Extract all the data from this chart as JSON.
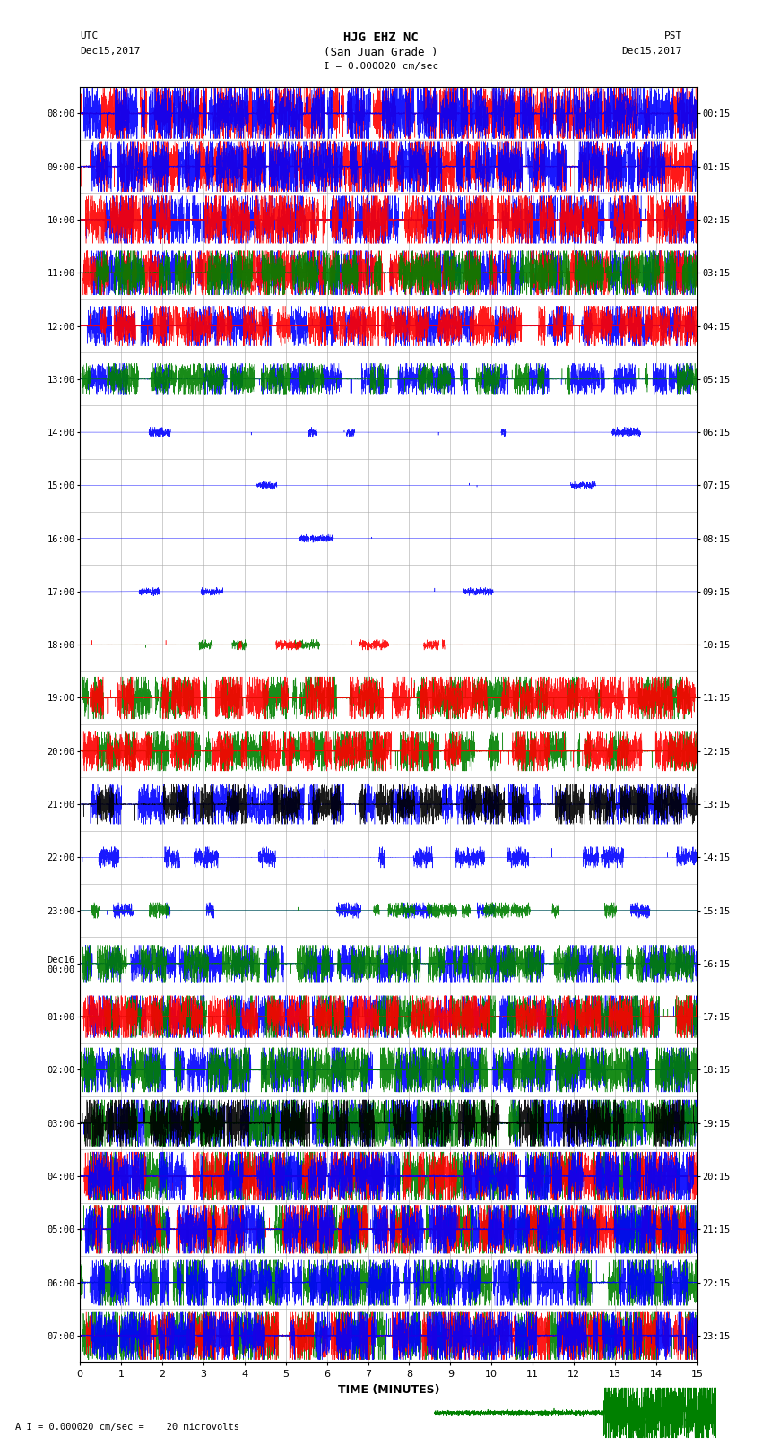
{
  "title_line1": "HJG EHZ NC",
  "title_line2": "(San Juan Grade )",
  "title_scale": "I = 0.000020 cm/sec",
  "left_label_top": "UTC",
  "left_label_date": "Dec15,2017",
  "right_label_top": "PST",
  "right_label_date": "Dec15,2017",
  "bottom_label": "TIME (MINUTES)",
  "bottom_note": "A I = 0.000020 cm/sec =    20 microvolts",
  "utc_times": [
    "08:00",
    "09:00",
    "10:00",
    "11:00",
    "12:00",
    "13:00",
    "14:00",
    "15:00",
    "16:00",
    "17:00",
    "18:00",
    "19:00",
    "20:00",
    "21:00",
    "22:00",
    "23:00",
    "Dec16\n00:00",
    "01:00",
    "02:00",
    "03:00",
    "04:00",
    "05:00",
    "06:00",
    "07:00"
  ],
  "pst_times": [
    "00:15",
    "01:15",
    "02:15",
    "03:15",
    "04:15",
    "05:15",
    "06:15",
    "07:15",
    "08:15",
    "09:15",
    "10:15",
    "11:15",
    "12:15",
    "13:15",
    "14:15",
    "15:15",
    "16:15",
    "17:15",
    "18:15",
    "19:15",
    "20:15",
    "21:15",
    "22:15",
    "23:15"
  ],
  "x_ticks": [
    0,
    1,
    2,
    3,
    4,
    5,
    6,
    7,
    8,
    9,
    10,
    11,
    12,
    13,
    14,
    15
  ],
  "x_lim": [
    0,
    15
  ],
  "num_rows": 24,
  "colors": {
    "red": "#ff0000",
    "blue": "#0000ff",
    "green": "#008000",
    "black": "#000000",
    "background": "#ffffff",
    "grid": "#aaaaaa"
  },
  "fig_width": 8.5,
  "fig_height": 16.13,
  "dpi": 100,
  "row_configs": [
    {
      "amp": 0.48,
      "colors": [
        "red",
        "blue"
      ],
      "noise": 0.35,
      "spikes": 0.9,
      "burst_density": 0.85
    },
    {
      "amp": 0.48,
      "colors": [
        "red",
        "blue"
      ],
      "noise": 0.3,
      "spikes": 0.9,
      "burst_density": 0.8
    },
    {
      "amp": 0.45,
      "colors": [
        "blue",
        "red"
      ],
      "noise": 0.28,
      "spikes": 0.85,
      "burst_density": 0.75
    },
    {
      "amp": 0.42,
      "colors": [
        "blue",
        "red",
        "green"
      ],
      "noise": 0.25,
      "spikes": 0.8,
      "burst_density": 0.7
    },
    {
      "amp": 0.38,
      "colors": [
        "blue",
        "red"
      ],
      "noise": 0.2,
      "spikes": 0.7,
      "burst_density": 0.55
    },
    {
      "amp": 0.3,
      "colors": [
        "blue",
        "green"
      ],
      "noise": 0.15,
      "spikes": 0.5,
      "burst_density": 0.4
    },
    {
      "amp": 0.1,
      "colors": [
        "blue"
      ],
      "noise": 0.03,
      "spikes": 0.05,
      "burst_density": 0.05
    },
    {
      "amp": 0.08,
      "colors": [
        "blue"
      ],
      "noise": 0.02,
      "spikes": 0.03,
      "burst_density": 0.03
    },
    {
      "amp": 0.08,
      "colors": [
        "blue"
      ],
      "noise": 0.02,
      "spikes": 0.03,
      "burst_density": 0.03
    },
    {
      "amp": 0.08,
      "colors": [
        "blue"
      ],
      "noise": 0.02,
      "spikes": 0.03,
      "burst_density": 0.03
    },
    {
      "amp": 0.1,
      "colors": [
        "green",
        "red"
      ],
      "noise": 0.04,
      "spikes": 0.06,
      "burst_density": 0.05
    },
    {
      "amp": 0.4,
      "colors": [
        "green",
        "red"
      ],
      "noise": 0.22,
      "spikes": 0.7,
      "burst_density": 0.6
    },
    {
      "amp": 0.38,
      "colors": [
        "green",
        "red"
      ],
      "noise": 0.2,
      "spikes": 0.65,
      "burst_density": 0.55
    },
    {
      "amp": 0.38,
      "colors": [
        "blue",
        "black"
      ],
      "noise": 0.18,
      "spikes": 0.65,
      "burst_density": 0.5
    },
    {
      "amp": 0.2,
      "colors": [
        "blue"
      ],
      "noise": 0.08,
      "spikes": 0.15,
      "burst_density": 0.15
    },
    {
      "amp": 0.15,
      "colors": [
        "blue",
        "green"
      ],
      "noise": 0.06,
      "spikes": 0.1,
      "burst_density": 0.1
    },
    {
      "amp": 0.35,
      "colors": [
        "blue",
        "green"
      ],
      "noise": 0.2,
      "spikes": 0.6,
      "burst_density": 0.5
    },
    {
      "amp": 0.4,
      "colors": [
        "blue",
        "green",
        "red"
      ],
      "noise": 0.22,
      "spikes": 0.7,
      "burst_density": 0.55
    },
    {
      "amp": 0.42,
      "colors": [
        "blue",
        "green"
      ],
      "noise": 0.25,
      "spikes": 0.75,
      "burst_density": 0.6
    },
    {
      "amp": 0.44,
      "colors": [
        "blue",
        "green",
        "black"
      ],
      "noise": 0.28,
      "spikes": 0.8,
      "burst_density": 0.65
    },
    {
      "amp": 0.46,
      "colors": [
        "green",
        "red",
        "blue"
      ],
      "noise": 0.3,
      "spikes": 0.85,
      "burst_density": 0.7
    },
    {
      "amp": 0.46,
      "colors": [
        "green",
        "red",
        "blue"
      ],
      "noise": 0.3,
      "spikes": 0.85,
      "burst_density": 0.7
    },
    {
      "amp": 0.44,
      "colors": [
        "green",
        "blue"
      ],
      "noise": 0.28,
      "spikes": 0.8,
      "burst_density": 0.65
    },
    {
      "amp": 0.46,
      "colors": [
        "green",
        "red",
        "blue"
      ],
      "noise": 0.3,
      "spikes": 0.85,
      "burst_density": 0.7
    }
  ]
}
